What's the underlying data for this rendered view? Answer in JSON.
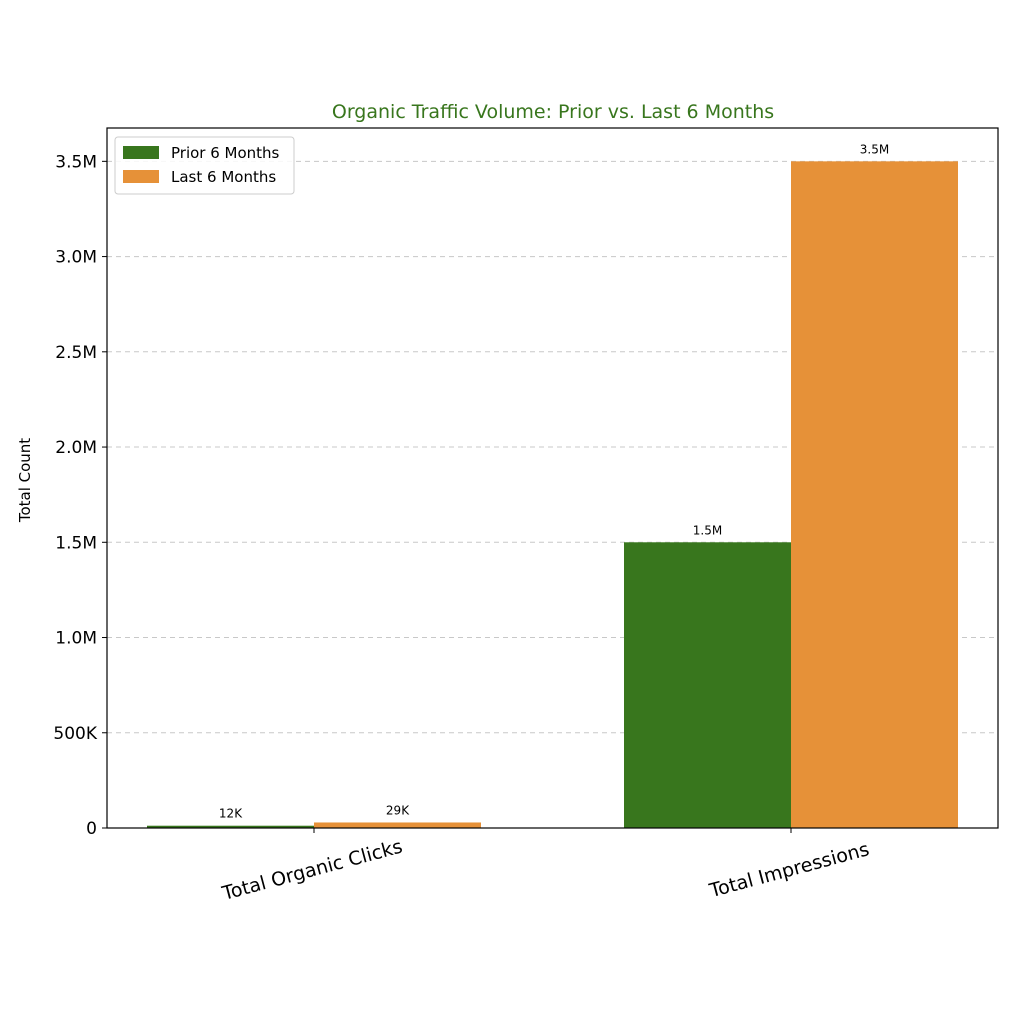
{
  "chart_data": {
    "type": "bar",
    "title": "Organic Traffic Volume: Prior vs. Last 6 Months",
    "xlabel": "",
    "ylabel": "Total Count",
    "categories": [
      "Total Organic Clicks",
      "Total Impressions"
    ],
    "series": [
      {
        "name": "Prior 6 Months",
        "values": [
          12000,
          1500000
        ],
        "labels": [
          "12K",
          "1.5M"
        ],
        "color": "#38761d"
      },
      {
        "name": "Last 6 Months",
        "values": [
          29000,
          3500000
        ],
        "labels": [
          "29K",
          "3.5M"
        ],
        "color": "#e69138"
      }
    ],
    "ylim": [
      0,
      3675000
    ],
    "yticks": [
      0,
      500000,
      1000000,
      1500000,
      2000000,
      2500000,
      3000000,
      3500000
    ],
    "ytick_labels": [
      "0",
      "500K",
      "1.0M",
      "1.5M",
      "2.0M",
      "2.5M",
      "3.0M",
      "3.5M"
    ],
    "grid": true,
    "grid_axis": "y",
    "legend_position": "top-left",
    "title_color": "#38761d"
  }
}
